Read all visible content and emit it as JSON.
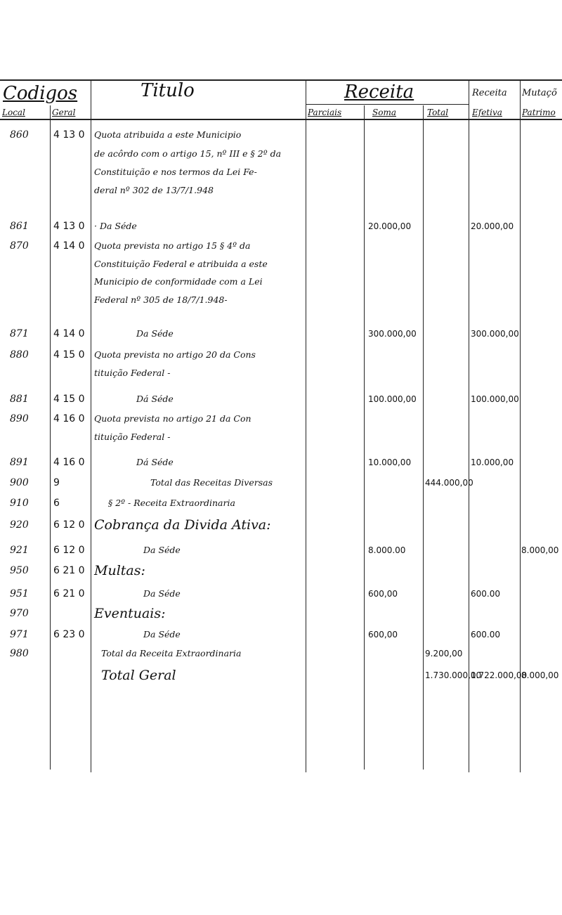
{
  "header": {
    "codigos": "Codigos",
    "titulo": "Titulo",
    "receita": "Receita",
    "receita_efetiva": "Receita",
    "mutacoes": "Mutaçõ",
    "sub": {
      "local": "Local",
      "geral": "Geral",
      "parciais": "Parciais",
      "soma": "Soma",
      "total": "Total",
      "efetiva": "Efetiva",
      "patrimonial": "Patrimo"
    }
  },
  "rows": [
    {
      "local": "860",
      "geral": "4 13 0",
      "titulo": "Quota atribuida a este Municipio",
      "soma": "",
      "total": "",
      "efetiva": "",
      "mutacoes": ""
    },
    {
      "local": "",
      "geral": "",
      "titulo": "de acôrdo com o artigo 15, nº III e § 2º da",
      "soma": "",
      "total": "",
      "efetiva": "",
      "mutacoes": ""
    },
    {
      "local": "",
      "geral": "",
      "titulo": "Constituição e nos termos da Lei Fe-",
      "soma": "",
      "total": "",
      "efetiva": "",
      "mutacoes": ""
    },
    {
      "local": "",
      "geral": "",
      "titulo": "deral nº 302 de 13/7/1.948",
      "soma": "",
      "total": "",
      "efetiva": "",
      "mutacoes": ""
    },
    {
      "local": "861",
      "geral": "4 13 0",
      "titulo": "· Da Séde",
      "soma": "20.000,00",
      "total": "",
      "efetiva": "20.000,00",
      "mutacoes": ""
    },
    {
      "local": "870",
      "geral": "4 14 0",
      "titulo": "Quota prevista no artigo 15 § 4º da",
      "soma": "",
      "total": "",
      "efetiva": "",
      "mutacoes": ""
    },
    {
      "local": "",
      "geral": "",
      "titulo": "Constituição Federal e atribuida a este",
      "soma": "",
      "total": "",
      "efetiva": "",
      "mutacoes": ""
    },
    {
      "local": "",
      "geral": "",
      "titulo": "Municipio de conformidade com a Lei",
      "soma": "",
      "total": "",
      "efetiva": "",
      "mutacoes": ""
    },
    {
      "local": "",
      "geral": "",
      "titulo": "Federal nº 305 de 18/7/1.948-",
      "soma": "",
      "total": "",
      "efetiva": "",
      "mutacoes": ""
    },
    {
      "local": "871",
      "geral": "4 14 0",
      "titulo": "Da Séde",
      "soma": "300.000,00",
      "total": "",
      "efetiva": "300.000,00",
      "mutacoes": ""
    },
    {
      "local": "880",
      "geral": "4 15 0",
      "titulo": "Quota prevista no artigo 20 da Cons",
      "soma": "",
      "total": "",
      "efetiva": "",
      "mutacoes": ""
    },
    {
      "local": "",
      "geral": "",
      "titulo": "tituição Federal -",
      "soma": "",
      "total": "",
      "efetiva": "",
      "mutacoes": ""
    },
    {
      "local": "881",
      "geral": "4 15 0",
      "titulo": "Dá Séde",
      "soma": "100.000,00",
      "total": "",
      "efetiva": "100.000,00",
      "mutacoes": ""
    },
    {
      "local": "890",
      "geral": "4 16 0",
      "titulo": "Quota prevista no artigo 21 da Con",
      "soma": "",
      "total": "",
      "efetiva": "",
      "mutacoes": ""
    },
    {
      "local": "",
      "geral": "",
      "titulo": "tituição Federal -",
      "soma": "",
      "total": "",
      "efetiva": "",
      "mutacoes": ""
    },
    {
      "local": "891",
      "geral": "4 16 0",
      "titulo": "Dá Séde",
      "soma": "10.000,00",
      "total": "",
      "efetiva": "10.000,00",
      "mutacoes": ""
    },
    {
      "local": "900",
      "geral": "9",
      "titulo": "Total das Receitas Diversas",
      "soma": "",
      "total": "444.000,00",
      "efetiva": "",
      "mutacoes": ""
    },
    {
      "local": "910",
      "geral": "6",
      "titulo": "§ 2º - Receita Extraordinaria",
      "soma": "",
      "total": "",
      "efetiva": "",
      "mutacoes": ""
    },
    {
      "local": "920",
      "geral": "6 12 0",
      "titulo": "Cobrança da Divida Ativa:",
      "soma": "",
      "total": "",
      "efetiva": "",
      "mutacoes": ""
    },
    {
      "local": "921",
      "geral": "6 12 0",
      "titulo": "Da Séde",
      "soma": "8.000.00",
      "total": "",
      "efetiva": "",
      "mutacoes": "8.000,00"
    },
    {
      "local": "950",
      "geral": "6 21 0",
      "titulo": "Multas:",
      "soma": "",
      "total": "",
      "efetiva": "",
      "mutacoes": ""
    },
    {
      "local": "951",
      "geral": "6 21 0",
      "titulo": "Da Séde",
      "soma": "600,00",
      "total": "",
      "efetiva": "600.00",
      "mutacoes": ""
    },
    {
      "local": "970",
      "geral": "",
      "titulo": "Eventuais:",
      "soma": "",
      "total": "",
      "efetiva": "",
      "mutacoes": ""
    },
    {
      "local": "971",
      "geral": "6 23 0",
      "titulo": "Da Séde",
      "soma": "600,00",
      "total": "",
      "efetiva": "600.00",
      "mutacoes": ""
    },
    {
      "local": "980",
      "geral": "",
      "titulo": "Total da Receita Extraordinaria",
      "soma": "",
      "total": "9.200,00",
      "efetiva": "",
      "mutacoes": ""
    },
    {
      "local": "",
      "geral": "",
      "titulo": "Total Geral",
      "soma": "",
      "total": "1.730.000,00",
      "efetiva": "1.722.000,00",
      "mutacoes": "8.000,00"
    }
  ]
}
